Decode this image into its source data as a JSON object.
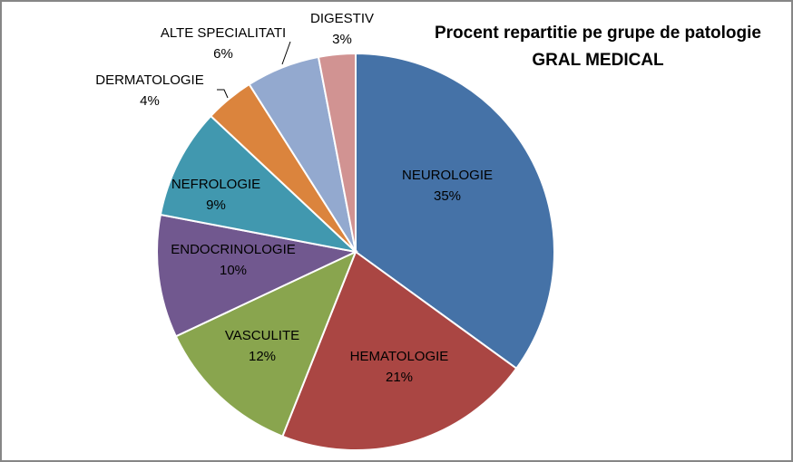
{
  "chart_data": {
    "type": "pie",
    "title_line1": "Procent repartitie pe grupe de patologie",
    "title_line2": "GRAL MEDICAL",
    "start_angle_deg": 0,
    "direction": "clockwise",
    "slices": [
      {
        "label": "NEUROLOGIE",
        "value": 35,
        "pct": "35%",
        "color": "#4572A7"
      },
      {
        "label": "HEMATOLOGIE",
        "value": 21,
        "pct": "21%",
        "color": "#AA4643"
      },
      {
        "label": "VASCULITE",
        "value": 12,
        "pct": "12%",
        "color": "#89A54E"
      },
      {
        "label": "ENDOCRINOLOGIE",
        "value": 10,
        "pct": "10%",
        "color": "#71588F"
      },
      {
        "label": "NEFROLOGIE",
        "value": 9,
        "pct": "9%",
        "color": "#4198AF"
      },
      {
        "label": "DERMATOLOGIE",
        "value": 4,
        "pct": "4%",
        "color": "#DB843D"
      },
      {
        "label": "ALTE SPECIALITATI",
        "value": 6,
        "pct": "6%",
        "color": "#93A9CF"
      },
      {
        "label": "DIGESTIV",
        "value": 3,
        "pct": "3%",
        "color": "#D19392"
      }
    ]
  }
}
